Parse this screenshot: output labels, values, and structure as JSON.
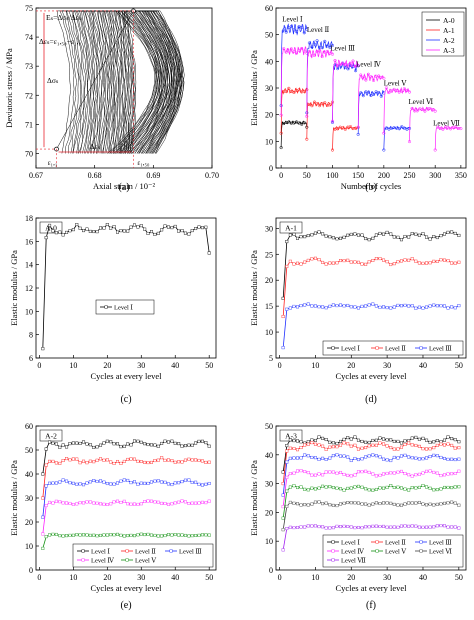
{
  "chart_data": [
    {
      "panel": "(a)",
      "type": "line",
      "xlabel": "Axial strain / 10⁻²",
      "ylabel": "Deviatoric stress / MPa",
      "xlim": [
        0.67,
        0.7
      ],
      "ylim": [
        69.5,
        75
      ],
      "xticks": [
        "0.67",
        "0.68",
        "0.69",
        "0.70"
      ],
      "yticks": [
        "70",
        "71",
        "72",
        "73",
        "74",
        "75"
      ],
      "annotations": [
        "Eₛ=Δσₛ/Δεₛ",
        "Δεₛ=ε₁,₅₀−ε₁,₁",
        "Δσₛ",
        "Δεₛ",
        "ε₁,₁",
        "ε₁,₅₀"
      ],
      "points": {
        "start": [
          0.6735,
          70.15
        ],
        "end": [
          0.6866,
          74.9
        ]
      },
      "loops": {
        "count": 50,
        "left_x_start": 0.6735,
        "left_x_end": 0.6855,
        "right_x_start": 0.6895,
        "right_x_end": 0.6945
      }
    },
    {
      "panel": "(b)",
      "type": "line",
      "xlabel": "Number of cycles",
      "ylabel": "Elastic modulus / GPa",
      "xlim": [
        -10,
        360
      ],
      "ylim": [
        0,
        60
      ],
      "xticks": [
        "0",
        "50",
        "100",
        "150",
        "200",
        "250",
        "300",
        "350"
      ],
      "yticks": [
        "0",
        "10",
        "20",
        "30",
        "40",
        "50",
        "60"
      ],
      "legend_position": "top-right",
      "level_labels": [
        "Level Ⅰ",
        "Level Ⅱ",
        "Level Ⅲ",
        "Level Ⅳ",
        "Level Ⅴ",
        "Level Ⅵ",
        "Level Ⅶ"
      ],
      "series": [
        {
          "name": "A-0",
          "color": "#000000",
          "segments": [
            [
              0,
              50,
              17
            ]
          ]
        },
        {
          "name": "A-1",
          "color": "#ff2020",
          "segments": [
            [
              0,
              50,
              29
            ],
            [
              50,
              100,
              24
            ],
            [
              100,
              150,
              15
            ]
          ]
        },
        {
          "name": "A-2",
          "color": "#1f2fff",
          "segments": [
            [
              0,
              50,
              52
            ],
            [
              50,
              100,
              46
            ],
            [
              100,
              150,
              38
            ],
            [
              150,
              200,
              28
            ],
            [
              200,
              250,
              15
            ]
          ]
        },
        {
          "name": "A-3",
          "color": "#ff20ff",
          "segments": [
            [
              0,
              50,
              44
            ],
            [
              50,
              100,
              43
            ],
            [
              100,
              150,
              39
            ],
            [
              150,
              200,
              34
            ],
            [
              200,
              250,
              29
            ],
            [
              250,
              300,
              22
            ],
            [
              300,
              350,
              15
            ]
          ]
        }
      ]
    },
    {
      "panel": "(c)",
      "type": "line",
      "tag": "A-0",
      "xlabel": "Cycles at every level",
      "ylabel": "Elastic modulus / GPa",
      "xlim": [
        -1,
        52
      ],
      "ylim": [
        6,
        18
      ],
      "xticks": [
        "0",
        "10",
        "20",
        "30",
        "40",
        "50"
      ],
      "yticks": [
        "6",
        "8",
        "10",
        "12",
        "14",
        "16",
        "18"
      ],
      "series": [
        {
          "name": "Level Ⅰ",
          "color": "#000000",
          "first": 6.8,
          "level": 17.0,
          "last": 15.0
        }
      ]
    },
    {
      "panel": "(d)",
      "type": "line",
      "tag": "A-1",
      "xlabel": "Cycles at every level",
      "ylabel": "Elastic modulus / GPa",
      "xlim": [
        -1,
        52
      ],
      "ylim": [
        5,
        32
      ],
      "xticks": [
        "0",
        "10",
        "20",
        "30",
        "40",
        "50"
      ],
      "yticks": [
        "5",
        "10",
        "15",
        "20",
        "25",
        "30"
      ],
      "series": [
        {
          "name": "Level Ⅰ",
          "color": "#000000",
          "first": 16.5,
          "level": 28.6
        },
        {
          "name": "Level Ⅱ",
          "color": "#ff2020",
          "first": 13.0,
          "level": 23.6
        },
        {
          "name": "Level Ⅲ",
          "color": "#1f2fff",
          "first": 7.0,
          "level": 15.0
        }
      ]
    },
    {
      "panel": "(e)",
      "type": "line",
      "tag": "A-2",
      "xlabel": "Cycles at every level",
      "ylabel": "Elastic modulus / GPa",
      "xlim": [
        -1,
        52
      ],
      "ylim": [
        0,
        60
      ],
      "xticks": [
        "0",
        "10",
        "20",
        "30",
        "40",
        "50"
      ],
      "yticks": [
        "0",
        "10",
        "20",
        "30",
        "40",
        "50",
        "60"
      ],
      "series": [
        {
          "name": "Level Ⅰ",
          "color": "#000000",
          "first": 40,
          "level": 52.5
        },
        {
          "name": "Level Ⅱ",
          "color": "#ff2020",
          "first": 30,
          "level": 45.5
        },
        {
          "name": "Level Ⅲ",
          "color": "#1f2fff",
          "first": 22,
          "level": 36.5
        },
        {
          "name": "Level Ⅳ",
          "color": "#ff20ff",
          "first": 15,
          "level": 28.0
        },
        {
          "name": "Level Ⅴ",
          "color": "#109010",
          "first": 9,
          "level": 14.5
        }
      ]
    },
    {
      "panel": "(f)",
      "type": "line",
      "tag": "A-3",
      "xlabel": "Cycles at every level",
      "ylabel": "Elastic modulus / GPa",
      "xlim": [
        -1,
        52
      ],
      "ylim": [
        0,
        50
      ],
      "xticks": [
        "0",
        "10",
        "20",
        "30",
        "40",
        "50"
      ],
      "yticks": [
        "0",
        "10",
        "20",
        "30",
        "40",
        "50"
      ],
      "series": [
        {
          "name": "Level Ⅰ",
          "color": "#000000",
          "first": 34,
          "level": 45.0
        },
        {
          "name": "Level Ⅱ",
          "color": "#ff2020",
          "first": 30,
          "level": 43.0
        },
        {
          "name": "Level Ⅲ",
          "color": "#1f2fff",
          "first": 26,
          "level": 39.0
        },
        {
          "name": "Level Ⅳ",
          "color": "#ff20ff",
          "first": 22,
          "level": 33.5
        },
        {
          "name": "Level Ⅴ",
          "color": "#109010",
          "first": 18,
          "level": 28.5
        },
        {
          "name": "Level Ⅵ",
          "color": "#404040",
          "first": 14,
          "level": 23.0
        },
        {
          "name": "Level Ⅶ",
          "color": "#a020f0",
          "first": 7,
          "level": 15.0
        }
      ]
    }
  ]
}
